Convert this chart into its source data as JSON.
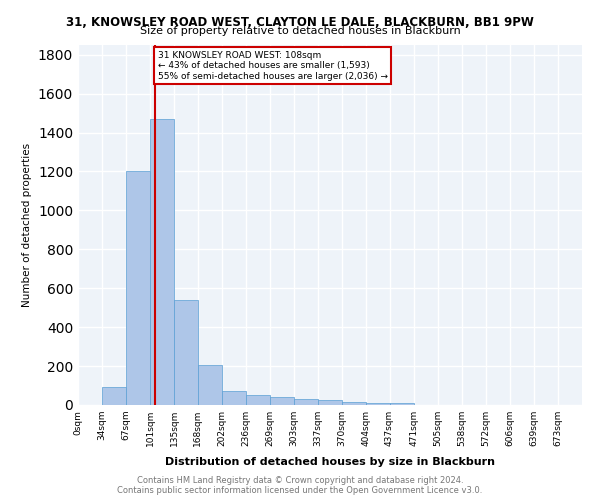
{
  "title1": "31, KNOWSLEY ROAD WEST, CLAYTON LE DALE, BLACKBURN, BB1 9PW",
  "title2": "Size of property relative to detached houses in Blackburn",
  "xlabel": "Distribution of detached houses by size in Blackburn",
  "ylabel": "Number of detached properties",
  "bin_labels": [
    "0sqm",
    "34sqm",
    "67sqm",
    "101sqm",
    "135sqm",
    "168sqm",
    "202sqm",
    "236sqm",
    "269sqm",
    "303sqm",
    "337sqm",
    "370sqm",
    "404sqm",
    "437sqm",
    "471sqm",
    "505sqm",
    "538sqm",
    "572sqm",
    "606sqm",
    "639sqm",
    "673sqm"
  ],
  "bin_edges": [
    0,
    34,
    67,
    101,
    135,
    168,
    202,
    236,
    269,
    303,
    337,
    370,
    404,
    437,
    471,
    505,
    538,
    572,
    606,
    639,
    673,
    707
  ],
  "bar_values": [
    0,
    90,
    1200,
    1470,
    540,
    205,
    70,
    50,
    40,
    30,
    25,
    15,
    10,
    10,
    0,
    0,
    0,
    0,
    0,
    0,
    0
  ],
  "bar_color": "#aec6e8",
  "bar_edge_color": "#5a9fd4",
  "vline_x": 108,
  "vline_color": "#cc0000",
  "annotation_title": "31 KNOWSLEY ROAD WEST: 108sqm",
  "annotation_line2": "← 43% of detached houses are smaller (1,593)",
  "annotation_line3": "55% of semi-detached houses are larger (2,036) →",
  "annotation_box_color": "#cc0000",
  "ylim": [
    0,
    1850
  ],
  "yticks": [
    0,
    200,
    400,
    600,
    800,
    1000,
    1200,
    1400,
    1600,
    1800
  ],
  "property_size": 108,
  "footer": "Contains HM Land Registry data © Crown copyright and database right 2024.\nContains public sector information licensed under the Open Government Licence v3.0.",
  "background_color": "#eef3f9",
  "grid_color": "#ffffff"
}
